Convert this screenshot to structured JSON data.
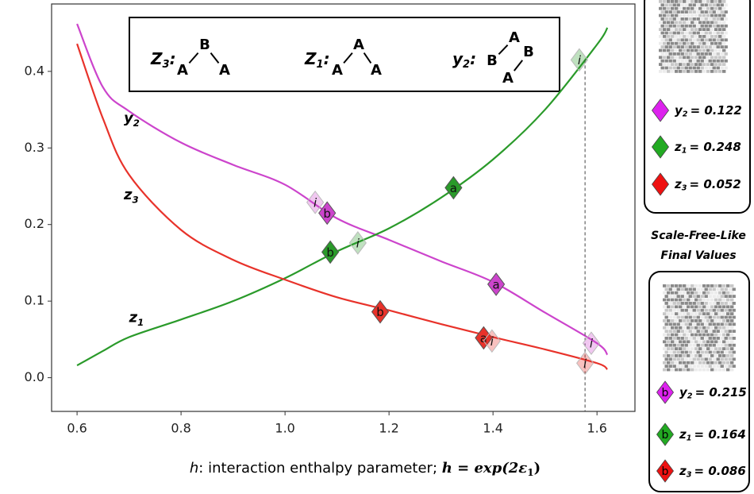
{
  "chart_data": {
    "type": "line",
    "x": [
      0.6,
      0.65,
      0.7,
      0.8,
      0.9,
      1.0,
      1.1,
      1.2,
      1.3,
      1.4,
      1.5,
      1.6,
      1.62
    ],
    "xlim": [
      0.551,
      1.673
    ],
    "ylim": [
      -0.044,
      0.488
    ],
    "xticks": [
      0.6,
      0.8,
      {
        "value": 1.0,
        "label": "1.0"
      },
      1.2,
      1.4,
      1.6
    ],
    "yticks": [
      {
        "value": 0.0,
        "label": "0.0"
      },
      0.1,
      0.2,
      0.3,
      0.4
    ],
    "series": [
      {
        "name": "y",
        "sub": "2",
        "color": "#cc44cc",
        "values": [
          0.462,
          0.379,
          0.348,
          0.307,
          0.278,
          0.252,
          0.208,
          0.18,
          0.152,
          0.125,
          0.085,
          0.045,
          0.03
        ],
        "markers": [
          {
            "label": "i",
            "x": 1.058,
            "y": 0.229,
            "faded": true
          },
          {
            "label": "b",
            "x": 1.081,
            "y": 0.215
          },
          {
            "label": "a",
            "x": 1.406,
            "y": 0.122
          },
          {
            "label": "i",
            "x": 1.589,
            "y": 0.045,
            "faded": true
          }
        ]
      },
      {
        "name": "z",
        "sub": "1",
        "color": "#2a9a2a",
        "values": [
          0.016,
          0.035,
          0.053,
          0.076,
          0.1,
          0.13,
          0.165,
          0.195,
          0.235,
          0.285,
          0.35,
          0.435,
          0.457
        ],
        "markers": [
          {
            "label": "b",
            "x": 1.087,
            "y": 0.164
          },
          {
            "label": "i",
            "x": 1.14,
            "y": 0.176,
            "faded": true
          },
          {
            "label": "a",
            "x": 1.324,
            "y": 0.248
          },
          {
            "label": "i",
            "x": 1.566,
            "y": 0.415,
            "faded": true
          }
        ]
      },
      {
        "name": "z",
        "sub": "3",
        "color": "#e8322a",
        "values": [
          0.436,
          0.338,
          0.265,
          0.193,
          0.154,
          0.128,
          0.105,
          0.088,
          0.07,
          0.053,
          0.037,
          0.019,
          0.011
        ],
        "markers": [
          {
            "label": "b",
            "x": 1.183,
            "y": 0.086
          },
          {
            "label": "a",
            "x": 1.382,
            "y": 0.052
          },
          {
            "label": "i",
            "x": 1.398,
            "y": 0.048,
            "faded": true
          },
          {
            "label": "i",
            "x": 1.577,
            "y": 0.019,
            "faded": true
          }
        ]
      }
    ],
    "curve_labels": [
      {
        "text": "y",
        "sub": "2",
        "x": 0.69,
        "y": 0.338
      },
      {
        "text": "z",
        "sub": "3",
        "x": 0.69,
        "y": 0.238
      },
      {
        "text": "z",
        "sub": "1",
        "x": 0.7,
        "y": 0.078
      }
    ],
    "vline_x": 1.577,
    "xlabel": [
      "h",
      ": interaction enthalpy parameter; ",
      "h = exp(2ε",
      "1",
      ")"
    ],
    "inset": [
      {
        "name": "Z",
        "sub": "3",
        "tail": ":",
        "atoms": [
          "A",
          "B",
          "A"
        ]
      },
      {
        "name": "Z",
        "sub": "1",
        "tail": ":",
        "atoms": [
          "A",
          "A",
          "A"
        ]
      },
      {
        "name": "y",
        "sub": "2",
        "tail": ":",
        "atoms": [
          "B",
          "A",
          "B",
          "A"
        ]
      }
    ],
    "side_top": [
      {
        "name": "y",
        "sub": "2",
        "text": "= 0.122",
        "color": "#dd22ee"
      },
      {
        "name": "z",
        "sub": "1",
        "text": "= 0.248",
        "color": "#22aa22"
      },
      {
        "name": "z",
        "sub": "3",
        "text": "= 0.052",
        "color": "#ee1111"
      }
    ],
    "side_caption": [
      "Scale-Free-Like",
      "Final Values"
    ],
    "side_bottom": [
      {
        "marker": "b",
        "name": "y",
        "sub": "2",
        "text": "= 0.215",
        "color": "#dd22ee"
      },
      {
        "marker": "b",
        "name": "z",
        "sub": "1",
        "text": "= 0.164",
        "color": "#22aa22"
      },
      {
        "marker": "b",
        "name": "z",
        "sub": "3",
        "text": "= 0.086",
        "color": "#ee1111"
      }
    ]
  }
}
